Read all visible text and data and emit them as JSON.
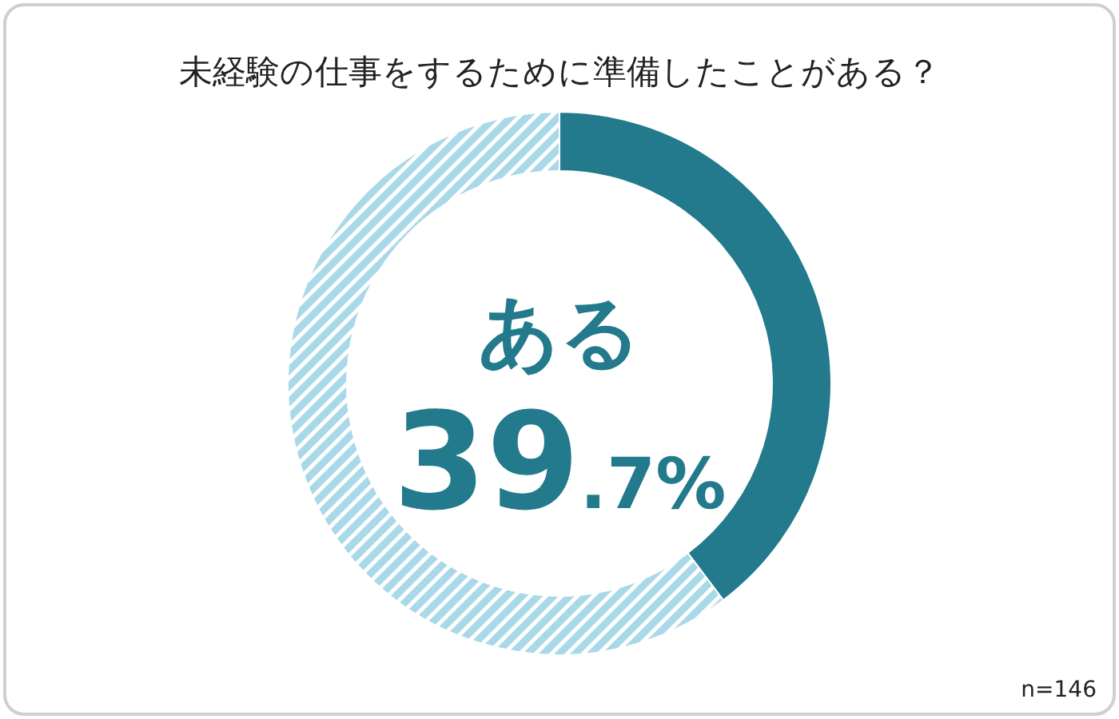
{
  "chart_data": {
    "type": "donut",
    "title": "未経験の仕事をするために準備したことがある？",
    "categories": [
      "ある",
      null
    ],
    "values": [
      39.7,
      60.3
    ],
    "colors": [
      "#227a8c",
      "#a9d8e8"
    ],
    "value_labels": [
      "39.7%",
      null
    ],
    "annotations": [
      "n=146"
    ]
  }
}
